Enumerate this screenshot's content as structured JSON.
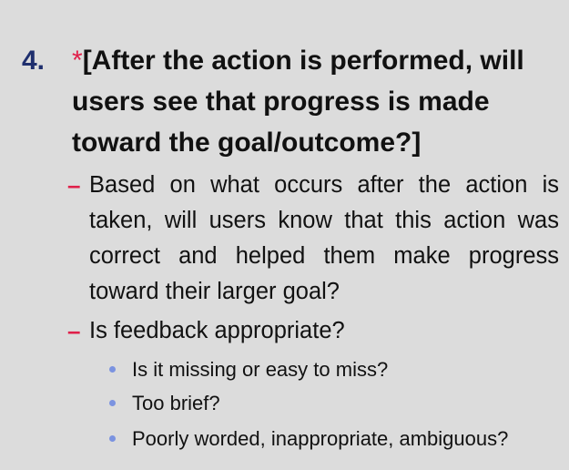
{
  "heading": {
    "number": "4.",
    "asterisk": "*",
    "text": "[After the action is performed, will users see that progress is made toward the goal/outcome?]"
  },
  "points": [
    {
      "marker": "–",
      "text": "Based on what occurs after the action is taken, will users know that this action was correct and helped them make progress toward their larger goal?"
    },
    {
      "marker": "–",
      "text": "Is feedback appropriate?",
      "subpoints": [
        "Is it missing or easy to miss?",
        "Too brief?",
        "Poorly worded, inappropriate, ambiguous?"
      ]
    }
  ],
  "colors": {
    "background": "#dcdcdc",
    "number": "#1f2f6e",
    "accent": "#e0204a",
    "bullet": "#7b93e0"
  }
}
